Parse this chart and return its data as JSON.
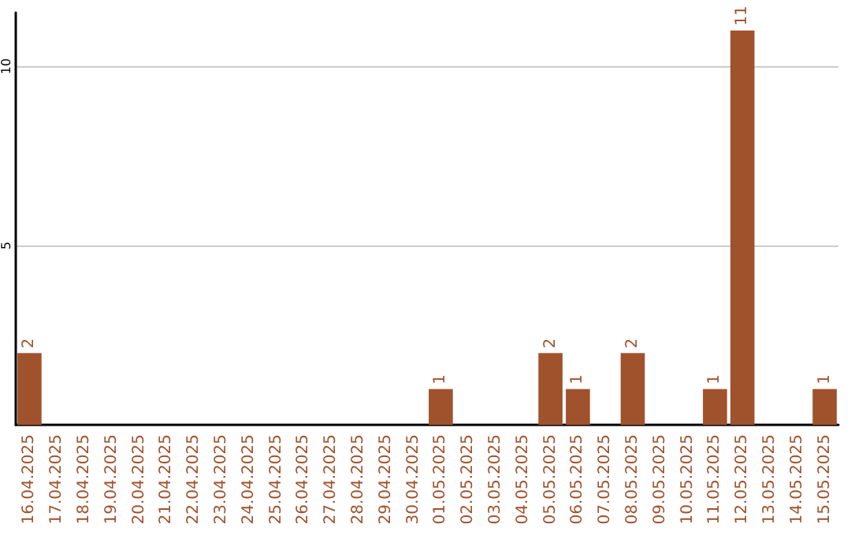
{
  "chart_data": {
    "type": "bar",
    "categories": [
      "16.04.2025",
      "17.04.2025",
      "18.04.2025",
      "19.04.2025",
      "20.04.2025",
      "21.04.2025",
      "22.04.2025",
      "23.04.2025",
      "24.04.2025",
      "25.04.2025",
      "26.04.2025",
      "27.04.2025",
      "28.04.2025",
      "29.04.2025",
      "30.04.2025",
      "01.05.2025",
      "02.05.2025",
      "03.05.2025",
      "04.05.2025",
      "05.05.2025",
      "06.05.2025",
      "07.05.2025",
      "08.05.2025",
      "09.05.2025",
      "10.05.2025",
      "11.05.2025",
      "12.05.2025",
      "13.05.2025",
      "14.05.2025",
      "15.05.2025"
    ],
    "values": [
      2,
      0,
      0,
      0,
      0,
      0,
      0,
      0,
      0,
      0,
      0,
      0,
      0,
      0,
      0,
      1,
      0,
      0,
      0,
      2,
      1,
      0,
      2,
      0,
      0,
      1,
      11,
      0,
      0,
      1
    ],
    "value_labels": [
      "2",
      null,
      null,
      null,
      null,
      null,
      null,
      null,
      null,
      null,
      null,
      null,
      null,
      null,
      null,
      "1",
      null,
      null,
      null,
      "2",
      "1",
      null,
      "2",
      null,
      null,
      "1",
      "11",
      null,
      null,
      "1"
    ],
    "color": "#a0522d",
    "ylim": [
      0,
      11.5
    ],
    "yticks": [
      5,
      10
    ],
    "grid": "y"
  }
}
